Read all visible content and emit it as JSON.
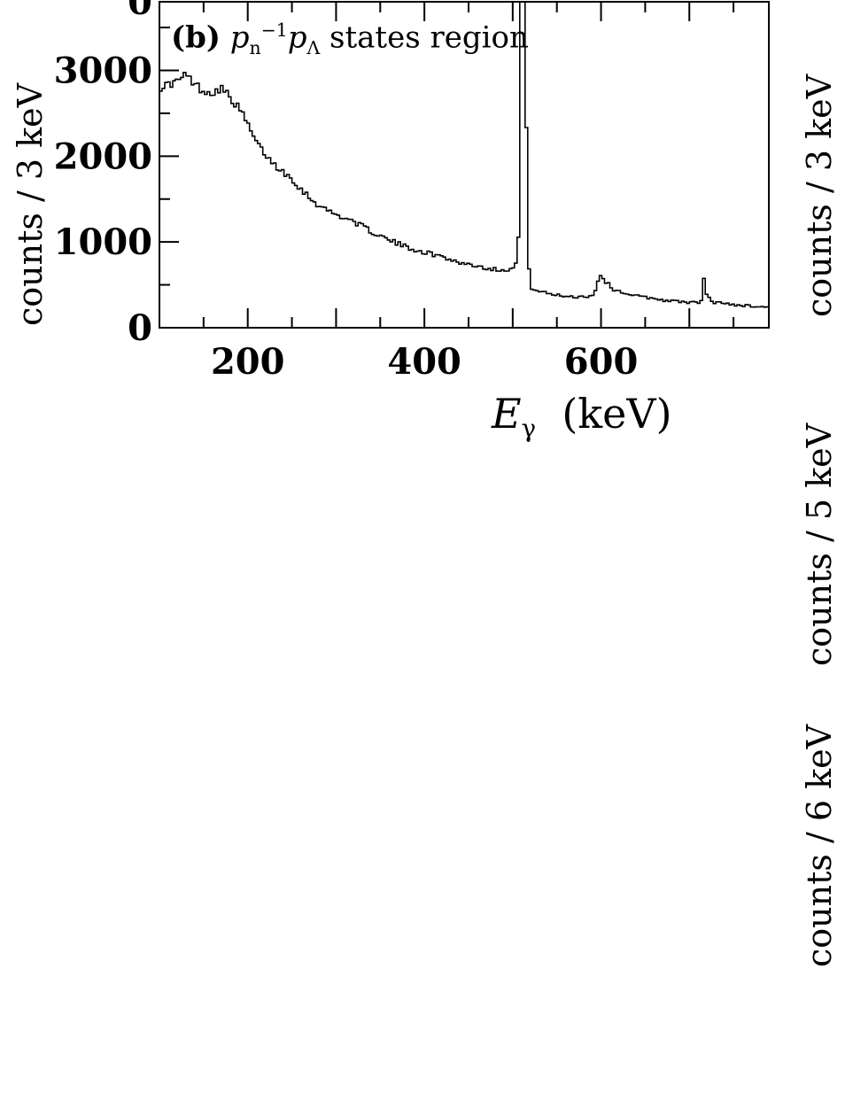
{
  "panel": {
    "label": "(b)",
    "title_p1": "p",
    "title_sub1": "n",
    "title_sup1": "−1",
    "title_p2": "p",
    "title_sub2": "Λ",
    "title_rest": "states region"
  },
  "xlabel": {
    "symbol": "E",
    "sub": "γ",
    "unit": "(keV)"
  },
  "ylabels": {
    "left": "counts / 3 keV",
    "right_top": "counts / 3 keV",
    "right_mid": "counts / 5 keV",
    "right_low": "counts / 6 keV"
  },
  "top_clipped_tick": "0",
  "chart_data": {
    "type": "line",
    "style": "step histogram",
    "xlim": [
      100,
      790
    ],
    "ylim": [
      0,
      3800
    ],
    "x_ticks": [
      200,
      400,
      600
    ],
    "y_ticks": [
      0,
      1000,
      2000,
      3000
    ],
    "xlabel": "Eγ (keV)",
    "ylabel": "counts / 3 keV",
    "bin_width": 3,
    "knots": [
      [
        100,
        2800
      ],
      [
        120,
        2870
      ],
      [
        130,
        2950
      ],
      [
        140,
        2840
      ],
      [
        150,
        2760
      ],
      [
        160,
        2740
      ],
      [
        170,
        2800
      ],
      [
        180,
        2680
      ],
      [
        190,
        2560
      ],
      [
        200,
        2370
      ],
      [
        210,
        2150
      ],
      [
        220,
        2020
      ],
      [
        230,
        1900
      ],
      [
        240,
        1820
      ],
      [
        250,
        1740
      ],
      [
        260,
        1620
      ],
      [
        270,
        1520
      ],
      [
        280,
        1430
      ],
      [
        290,
        1370
      ],
      [
        300,
        1320
      ],
      [
        320,
        1240
      ],
      [
        340,
        1120
      ],
      [
        360,
        1020
      ],
      [
        380,
        940
      ],
      [
        400,
        880
      ],
      [
        420,
        830
      ],
      [
        440,
        760
      ],
      [
        460,
        720
      ],
      [
        480,
        680
      ],
      [
        495,
        680
      ],
      [
        503,
        700
      ],
      [
        508,
        1200
      ],
      [
        510,
        5000
      ],
      [
        513,
        5000
      ],
      [
        516,
        1750
      ],
      [
        519,
        480
      ],
      [
        530,
        420
      ],
      [
        550,
        380
      ],
      [
        570,
        360
      ],
      [
        590,
        370
      ],
      [
        595,
        460
      ],
      [
        598,
        640
      ],
      [
        605,
        540
      ],
      [
        615,
        440
      ],
      [
        640,
        370
      ],
      [
        680,
        310
      ],
      [
        710,
        290
      ],
      [
        715,
        330
      ],
      [
        716,
        600
      ],
      [
        718,
        430
      ],
      [
        725,
        300
      ],
      [
        760,
        260
      ],
      [
        790,
        240
      ]
    ]
  }
}
